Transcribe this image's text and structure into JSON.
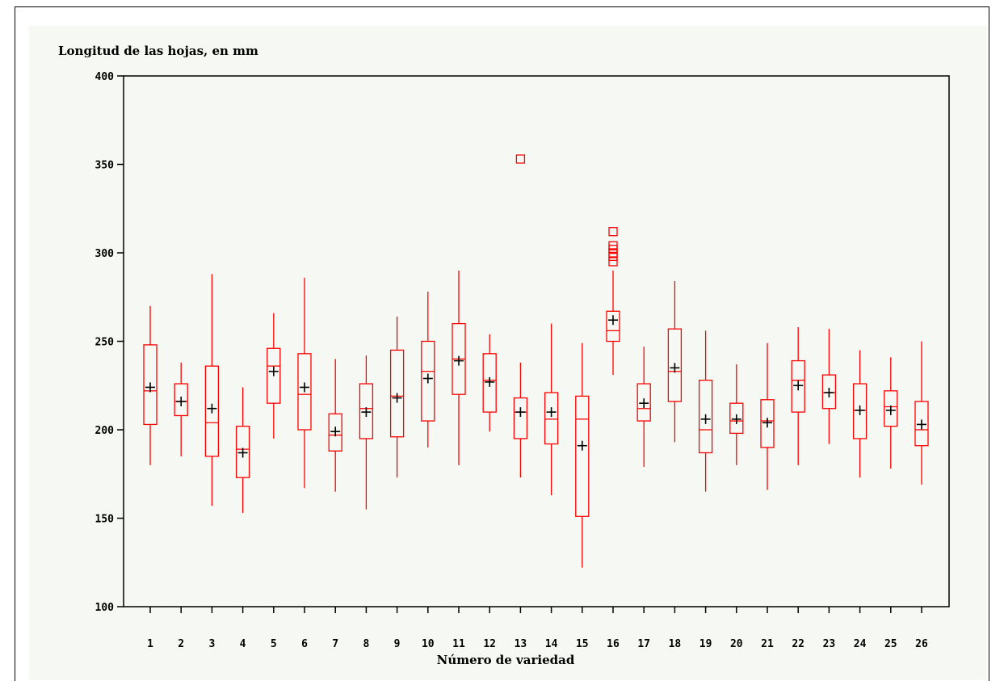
{
  "chart_data": {
    "type": "boxplot",
    "ylabel": "Longitud de las hojas, en mm",
    "xlabel": "Número de variedad",
    "ylim": [
      100,
      400
    ],
    "yticks": [
      100,
      150,
      200,
      250,
      300,
      350,
      400
    ],
    "grid": false,
    "legend": "none",
    "colors": {
      "box": "#ff0000",
      "mean_marker": "#000000",
      "background": "#f6f9f3"
    },
    "categories": [
      "1",
      "2",
      "3",
      "4",
      "5",
      "6",
      "7",
      "8",
      "9",
      "10",
      "11",
      "12",
      "13",
      "14",
      "15",
      "16",
      "17",
      "18",
      "19",
      "20",
      "21",
      "22",
      "23",
      "24",
      "25",
      "26"
    ],
    "boxes": [
      {
        "min": 180,
        "q1": 203,
        "median": 222,
        "q3": 248,
        "max": 270,
        "mean": 224,
        "outliers": []
      },
      {
        "min": 185,
        "q1": 208,
        "median": 216,
        "q3": 226,
        "max": 238,
        "mean": 216,
        "outliers": []
      },
      {
        "min": 157,
        "q1": 185,
        "median": 204,
        "q3": 236,
        "max": 288,
        "mean": 212,
        "outliers": []
      },
      {
        "min": 153,
        "q1": 173,
        "median": 189,
        "q3": 202,
        "max": 224,
        "mean": 187,
        "outliers": []
      },
      {
        "min": 195,
        "q1": 215,
        "median": 236,
        "q3": 246,
        "max": 266,
        "mean": 233,
        "outliers": []
      },
      {
        "min": 167,
        "q1": 200,
        "median": 220,
        "q3": 243,
        "max": 286,
        "mean": 224,
        "outliers": []
      },
      {
        "min": 165,
        "q1": 188,
        "median": 197,
        "q3": 209,
        "max": 240,
        "mean": 199,
        "outliers": []
      },
      {
        "min": 155,
        "q1": 195,
        "median": 212,
        "q3": 226,
        "max": 242,
        "mean": 210,
        "outliers": []
      },
      {
        "min": 173,
        "q1": 196,
        "median": 219,
        "q3": 245,
        "max": 264,
        "mean": 218,
        "outliers": []
      },
      {
        "min": 190,
        "q1": 205,
        "median": 233,
        "q3": 250,
        "max": 278,
        "mean": 229,
        "outliers": []
      },
      {
        "min": 180,
        "q1": 220,
        "median": 240,
        "q3": 260,
        "max": 290,
        "mean": 239,
        "outliers": []
      },
      {
        "min": 199,
        "q1": 210,
        "median": 228,
        "q3": 243,
        "max": 254,
        "mean": 227,
        "outliers": []
      },
      {
        "min": 173,
        "q1": 195,
        "median": 210,
        "q3": 218,
        "max": 238,
        "mean": 210,
        "outliers": [
          353
        ]
      },
      {
        "min": 163,
        "q1": 192,
        "median": 206,
        "q3": 221,
        "max": 260,
        "mean": 210,
        "outliers": []
      },
      {
        "min": 122,
        "q1": 151,
        "median": 206,
        "q3": 219,
        "max": 249,
        "mean": 191,
        "outliers": []
      },
      {
        "min": 231,
        "q1": 250,
        "median": 256,
        "q3": 267,
        "max": 290,
        "mean": 262,
        "outliers": [
          295,
          298,
          300,
          302,
          304,
          312
        ]
      },
      {
        "min": 179,
        "q1": 205,
        "median": 212,
        "q3": 226,
        "max": 247,
        "mean": 215,
        "outliers": []
      },
      {
        "min": 193,
        "q1": 216,
        "median": 233,
        "q3": 257,
        "max": 284,
        "mean": 235,
        "outliers": []
      },
      {
        "min": 165,
        "q1": 187,
        "median": 200,
        "q3": 228,
        "max": 256,
        "mean": 206,
        "outliers": []
      },
      {
        "min": 180,
        "q1": 198,
        "median": 205,
        "q3": 215,
        "max": 237,
        "mean": 206,
        "outliers": []
      },
      {
        "min": 166,
        "q1": 190,
        "median": 205,
        "q3": 217,
        "max": 249,
        "mean": 204,
        "outliers": []
      },
      {
        "min": 180,
        "q1": 210,
        "median": 228,
        "q3": 239,
        "max": 258,
        "mean": 225,
        "outliers": []
      },
      {
        "min": 192,
        "q1": 212,
        "median": 221,
        "q3": 231,
        "max": 257,
        "mean": 221,
        "outliers": []
      },
      {
        "min": 173,
        "q1": 195,
        "median": 211,
        "q3": 226,
        "max": 245,
        "mean": 211,
        "outliers": []
      },
      {
        "min": 178,
        "q1": 202,
        "median": 213,
        "q3": 222,
        "max": 241,
        "mean": 211,
        "outliers": []
      },
      {
        "min": 169,
        "q1": 191,
        "median": 200,
        "q3": 216,
        "max": 250,
        "mean": 203,
        "outliers": []
      }
    ]
  }
}
